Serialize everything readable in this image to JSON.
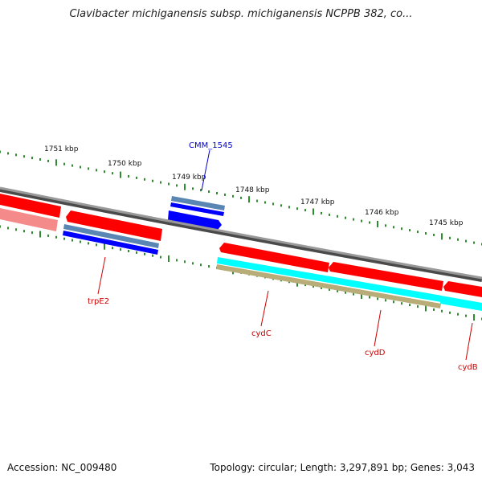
{
  "title": "Clavibacter michiganensis subsp. michiganensis NCPPB 382, co...",
  "footer": {
    "accession": "Accession: NC_009480",
    "summary": "Topology: circular; Length: 3,297,891 bp; Genes: 3,043"
  },
  "colors": {
    "backbone": "#8c8c8c",
    "tick": "#2e8b2e",
    "forward_cds": "#ff0000",
    "forward_gene_shadow": "#f58a8a",
    "blue_feature": "#0000ff",
    "steel_feature": "#5a86b4",
    "cyan_feature": "#00ffff",
    "olive_feature": "#b8ad78",
    "label_red": "#cc0000",
    "label_blue": "#0000cc"
  },
  "scale_labels": [
    "1751 kbp",
    "1750 kbp",
    "1749 kbp",
    "1748 kbp",
    "1747 kbp",
    "1746 kbp",
    "1745 kbp"
  ],
  "gene_labels": [
    {
      "name": "CMM_1545",
      "color": "label_blue"
    },
    {
      "name": "trpE2",
      "color": "label_red"
    },
    {
      "name": "cydC",
      "color": "label_red"
    },
    {
      "name": "cydD",
      "color": "label_red"
    },
    {
      "name": "cydB",
      "color": "label_red"
    }
  ]
}
